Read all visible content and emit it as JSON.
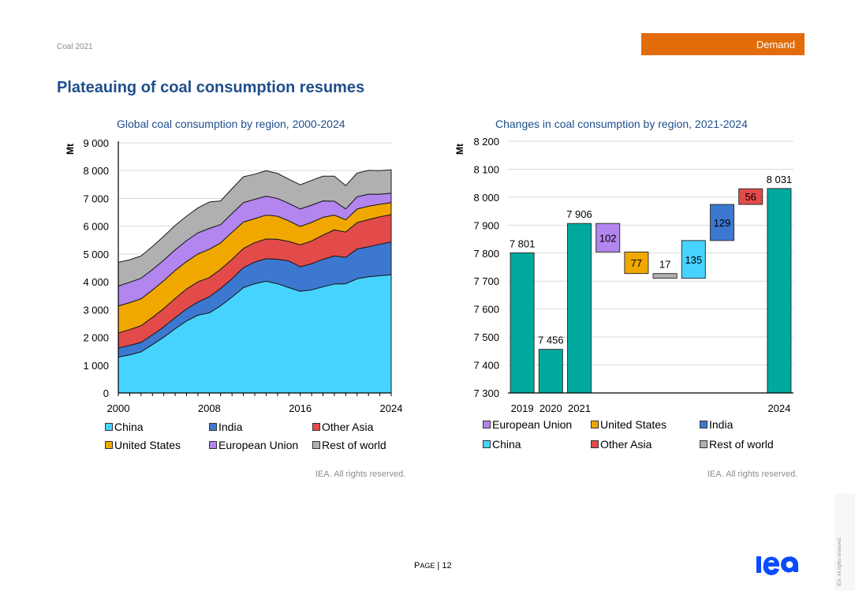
{
  "header": {
    "doc_label": "Coal 2021",
    "section_tab": "Demand",
    "page_title": "Plateauing of coal consumption resumes"
  },
  "colors": {
    "accent_orange": "#e36c0a",
    "title_blue": "#1f4e8c",
    "china": "#47d3ff",
    "india": "#3c78d0",
    "other_asia": "#e34a4a",
    "united_states": "#f0a800",
    "european_union": "#b385ef",
    "rest_of_world": "#b0b0b0",
    "total": "#00a99d"
  },
  "chart_data": [
    {
      "type": "area",
      "stacked": true,
      "title": "Global coal consumption by region, 2000-2024",
      "xlabel": "",
      "ylabel": "Mt",
      "x": [
        2000,
        2001,
        2002,
        2003,
        2004,
        2005,
        2006,
        2007,
        2008,
        2009,
        2010,
        2011,
        2012,
        2013,
        2014,
        2015,
        2016,
        2017,
        2018,
        2019,
        2020,
        2021,
        2022,
        2023,
        2024
      ],
      "xticks": [
        "2000",
        "2008",
        "2016",
        "2024"
      ],
      "ylim": [
        0,
        9000
      ],
      "yticks": [
        "0",
        "1 000",
        "2 000",
        "3 000",
        "4 000",
        "5 000",
        "6 000",
        "7 000",
        "8 000",
        "9 000"
      ],
      "grid": true,
      "legend_position": "bottom",
      "series": [
        {
          "name": "China",
          "color_key": "china",
          "values": [
            1290,
            1370,
            1480,
            1740,
            2010,
            2310,
            2590,
            2800,
            2880,
            3140,
            3450,
            3790,
            3930,
            4020,
            3930,
            3790,
            3660,
            3710,
            3820,
            3920,
            3930,
            4110,
            4180,
            4220,
            4250
          ]
        },
        {
          "name": "India",
          "color_key": "india",
          "values": [
            330,
            340,
            340,
            350,
            370,
            400,
            430,
            470,
            580,
            620,
            660,
            720,
            780,
            810,
            880,
            960,
            880,
            940,
            990,
            1010,
            950,
            1070,
            1080,
            1130,
            1180
          ]
        },
        {
          "name": "Other Asia",
          "color_key": "other_asia",
          "values": [
            540,
            570,
            600,
            630,
            660,
            690,
            720,
            730,
            690,
            690,
            700,
            690,
            700,
            710,
            720,
            700,
            790,
            820,
            870,
            940,
            910,
            950,
            980,
            990,
            990
          ]
        },
        {
          "name": "United States",
          "color_key": "united_states",
          "values": [
            970,
            970,
            970,
            980,
            1000,
            1010,
            990,
            1000,
            1020,
            950,
            970,
            950,
            860,
            860,
            830,
            740,
            660,
            670,
            640,
            530,
            440,
            490,
            480,
            450,
            430
          ]
        },
        {
          "name": "European Union",
          "color_key": "european_union",
          "values": [
            720,
            730,
            740,
            740,
            740,
            740,
            750,
            760,
            750,
            660,
            680,
            700,
            700,
            680,
            640,
            630,
            630,
            620,
            590,
            500,
            390,
            440,
            430,
            360,
            340
          ]
        },
        {
          "name": "Rest of world",
          "color_key": "rest_of_world",
          "values": [
            850,
            810,
            800,
            830,
            860,
            880,
            880,
            900,
            950,
            850,
            890,
            930,
            900,
            920,
            900,
            870,
            870,
            890,
            890,
            900,
            840,
            850,
            860,
            850,
            840
          ]
        }
      ],
      "legend": [
        "China",
        "India",
        "Other Asia",
        "United States",
        "European Union",
        "Rest of world"
      ],
      "source": "IEA. All rights reserved."
    },
    {
      "type": "bar",
      "subtype": "waterfall",
      "title": "Changes in coal consumption by region, 2021-2024",
      "xlabel": "",
      "ylabel": "Mt",
      "ylim": [
        7300,
        8200
      ],
      "yticks": [
        "7 300",
        "7 400",
        "7 500",
        "7 600",
        "7 700",
        "7 800",
        "7 900",
        "8 000",
        "8 100",
        "8 200"
      ],
      "grid": true,
      "legend_position": "bottom",
      "bars": [
        {
          "category": "2019",
          "kind": "total",
          "value": 7801,
          "label": "7 801",
          "color_key": "total"
        },
        {
          "category": "2020",
          "kind": "total",
          "value": 7456,
          "label": "7 456",
          "color_key": "total"
        },
        {
          "category": "2021",
          "kind": "total",
          "value": 7906,
          "label": "7 906",
          "color_key": "total"
        },
        {
          "category": "",
          "kind": "delta",
          "series": "European Union",
          "value": -102,
          "label": "102",
          "color_key": "european_union"
        },
        {
          "category": "",
          "kind": "delta",
          "series": "United States",
          "value": -77,
          "label": "77",
          "color_key": "united_states"
        },
        {
          "category": "",
          "kind": "delta",
          "series": "Rest of world",
          "value": -17,
          "label": "17",
          "color_key": "rest_of_world"
        },
        {
          "category": "",
          "kind": "delta",
          "series": "China",
          "value": 135,
          "label": "135",
          "color_key": "china"
        },
        {
          "category": "",
          "kind": "delta",
          "series": "India",
          "value": 129,
          "label": "129",
          "color_key": "india"
        },
        {
          "category": "",
          "kind": "delta",
          "series": "Other Asia",
          "value": 56,
          "label": "56",
          "color_key": "other_asia"
        },
        {
          "category": "2024",
          "kind": "total",
          "value": 8031,
          "label": "8 031",
          "color_key": "total"
        }
      ],
      "legend": [
        {
          "name": "European Union",
          "color_key": "european_union"
        },
        {
          "name": "United States",
          "color_key": "united_states"
        },
        {
          "name": "India",
          "color_key": "india"
        },
        {
          "name": "China",
          "color_key": "china"
        },
        {
          "name": "Other Asia",
          "color_key": "other_asia"
        },
        {
          "name": "Rest of world",
          "color_key": "rest_of_world"
        }
      ],
      "source": "IEA. All rights reserved."
    }
  ],
  "footer": {
    "page_prefix": "Page",
    "page_sep": "|",
    "page_number": "12",
    "logo_text": "iea",
    "side_rights": "IEA. All rights reserved."
  }
}
